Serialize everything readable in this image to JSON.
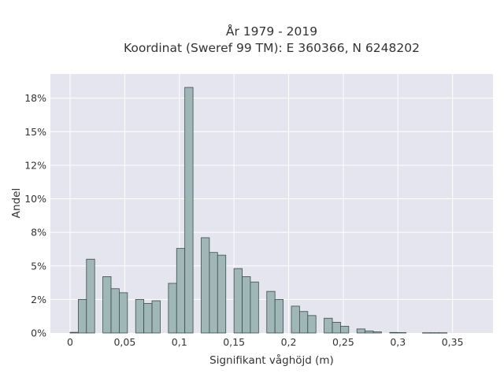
{
  "chart_data": {
    "type": "bar",
    "title_lines": [
      "År 1979 - 2019",
      "Koordinat (Sweref 99 TM): E 360366, N 6248202"
    ],
    "xlabel": "Signifikant våghöjd (m)",
    "ylabel": "Andel",
    "xlim": [
      -0.018,
      0.387
    ],
    "ylim": [
      0,
      0.193
    ],
    "x_ticks": [
      {
        "value": 0,
        "label": "0"
      },
      {
        "value": 0.05,
        "label": "0,05"
      },
      {
        "value": 0.1,
        "label": "0,1"
      },
      {
        "value": 0.15,
        "label": "0,15"
      },
      {
        "value": 0.2,
        "label": "0,2"
      },
      {
        "value": 0.25,
        "label": "0,25"
      },
      {
        "value": 0.3,
        "label": "0,3"
      },
      {
        "value": 0.35,
        "label": "0,35"
      }
    ],
    "y_ticks": [
      {
        "value": 0,
        "label": "0%"
      },
      {
        "value": 0.025,
        "label": "2%"
      },
      {
        "value": 0.05,
        "label": "5%"
      },
      {
        "value": 0.075,
        "label": "8%"
      },
      {
        "value": 0.1,
        "label": "10%"
      },
      {
        "value": 0.125,
        "label": "12%"
      },
      {
        "value": 0.15,
        "label": "15%"
      },
      {
        "value": 0.175,
        "label": "18%"
      }
    ],
    "bin_width": 0.0075,
    "bins": [
      {
        "x0": 0.0,
        "value": 0.0005
      },
      {
        "x0": 0.0075,
        "value": 0.025
      },
      {
        "x0": 0.015,
        "value": 0.055
      },
      {
        "x0": 0.03,
        "value": 0.042
      },
      {
        "x0": 0.0375,
        "value": 0.033
      },
      {
        "x0": 0.045,
        "value": 0.03
      },
      {
        "x0": 0.06,
        "value": 0.025
      },
      {
        "x0": 0.0675,
        "value": 0.022
      },
      {
        "x0": 0.075,
        "value": 0.024
      },
      {
        "x0": 0.09,
        "value": 0.037
      },
      {
        "x0": 0.0975,
        "value": 0.063
      },
      {
        "x0": 0.105,
        "value": 0.183
      },
      {
        "x0": 0.12,
        "value": 0.071
      },
      {
        "x0": 0.1275,
        "value": 0.06
      },
      {
        "x0": 0.135,
        "value": 0.058
      },
      {
        "x0": 0.15,
        "value": 0.048
      },
      {
        "x0": 0.1575,
        "value": 0.042
      },
      {
        "x0": 0.165,
        "value": 0.038
      },
      {
        "x0": 0.18,
        "value": 0.031
      },
      {
        "x0": 0.1875,
        "value": 0.025
      },
      {
        "x0": 0.195,
        "value": 0.0
      },
      {
        "x0": 0.2025,
        "value": 0.02
      },
      {
        "x0": 0.21,
        "value": 0.016
      },
      {
        "x0": 0.2175,
        "value": 0.013
      },
      {
        "x0": 0.2325,
        "value": 0.011
      },
      {
        "x0": 0.24,
        "value": 0.008
      },
      {
        "x0": 0.2475,
        "value": 0.005
      },
      {
        "x0": 0.2625,
        "value": 0.003
      },
      {
        "x0": 0.27,
        "value": 0.0015
      },
      {
        "x0": 0.2775,
        "value": 0.0008
      },
      {
        "x0": 0.2925,
        "value": 0.0004
      },
      {
        "x0": 0.3,
        "value": 0.0003
      },
      {
        "x0": 0.3225,
        "value": 0.0002
      },
      {
        "x0": 0.33,
        "value": 0.0002
      },
      {
        "x0": 0.3375,
        "value": 0.0002
      }
    ],
    "colors": {
      "plot_bg": "#e5e5ef",
      "bar_fill": "#9fb7b7",
      "bar_stroke": "#3a4d4d",
      "grid": "#ffffff"
    },
    "grid": true,
    "legend": "none"
  }
}
